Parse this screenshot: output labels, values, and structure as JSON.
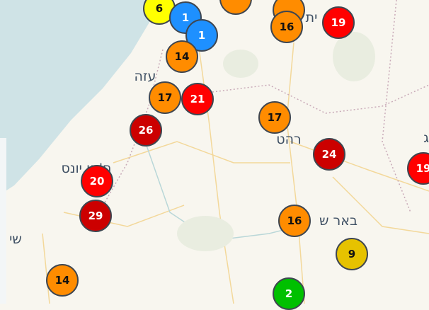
{
  "colors": {
    "sea": "#cfe3e6",
    "land": "#f8f6ef",
    "road": "#f3d89a",
    "border": "#c9aab8"
  },
  "labels": [
    {
      "text": "עזה",
      "pos": "gaza"
    },
    {
      "text": "רהט",
      "pos": "rahat"
    },
    {
      "text": "ח'אן יונס",
      "pos": "khan-yunis"
    },
    {
      "text": "באר ש",
      "pos": "beersheba"
    },
    {
      "text": "שי",
      "pos": "shi"
    },
    {
      "text": "ית",
      "pos": "yt"
    },
    {
      "text": "ג",
      "pos": "g"
    }
  ],
  "markers": [
    {
      "count": "",
      "color": "#ff8c00"
    },
    {
      "count": "",
      "color": "#ff8c00"
    },
    {
      "count": "6",
      "color": "#ffff00"
    },
    {
      "count": "1",
      "color": "#1e90ff"
    },
    {
      "count": "1",
      "color": "#1e90ff"
    },
    {
      "count": "14",
      "color": "#ff8c00"
    },
    {
      "count": "16",
      "color": "#ff8c00"
    },
    {
      "count": "19",
      "color": "#ff0000"
    },
    {
      "count": "17",
      "color": "#ff8c00"
    },
    {
      "count": "21",
      "color": "#ff0000"
    },
    {
      "count": "26",
      "color": "#cc0000"
    },
    {
      "count": "17",
      "color": "#ff8c00"
    },
    {
      "count": "24",
      "color": "#cc0000"
    },
    {
      "count": "19",
      "color": "#ff0000"
    },
    {
      "count": "20",
      "color": "#ff0000"
    },
    {
      "count": "29",
      "color": "#cc0000"
    },
    {
      "count": "16",
      "color": "#ff8c00"
    },
    {
      "count": "9",
      "color": "#e6c200"
    },
    {
      "count": "14",
      "color": "#ff8c00"
    },
    {
      "count": "2",
      "color": "#00c000"
    }
  ]
}
